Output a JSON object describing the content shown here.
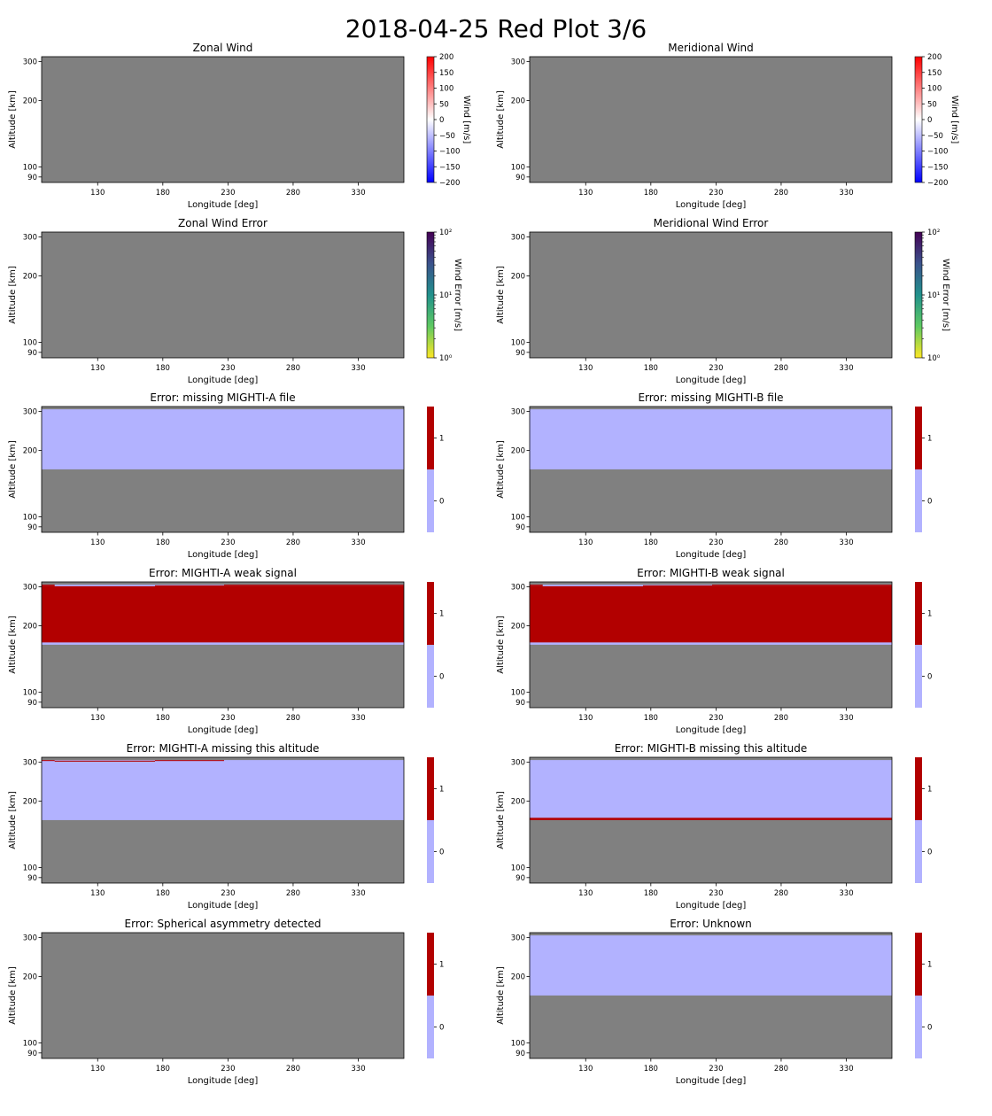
{
  "suptitle": "2018-04-25 Red Plot 3/6",
  "colors": {
    "no_data": "#808080",
    "flag_zero": "#b2b2ff",
    "flag_one": "#b20000",
    "wind_cmap": [
      "#0000ff",
      "#ffffff",
      "#ff0000"
    ],
    "error_cmap": [
      "#fde725",
      "#5ec962",
      "#21918c",
      "#3b528b",
      "#440154"
    ]
  },
  "chart_data": [
    {
      "type": "heatmap",
      "title": "Zonal Wind",
      "xlabel": "Longitude [deg]",
      "ylabel": "Altitude [km]",
      "xticks": [
        130,
        180,
        230,
        280,
        330
      ],
      "yticks": [
        90,
        100,
        200,
        300
      ],
      "xlim": [
        87,
        365
      ],
      "ylim": [
        85,
        316
      ],
      "colorbar": {
        "kind": "wind",
        "label": "Wind [m/s]",
        "range": [
          -200,
          200
        ],
        "ticks": [
          "200",
          "150",
          "100",
          "50",
          "0",
          "−50",
          "−100",
          "−150",
          "−200"
        ]
      },
      "bands": []
    },
    {
      "type": "heatmap",
      "title": "Meridional Wind",
      "xlabel": "Longitude [deg]",
      "ylabel": "Altitude [km]",
      "xticks": [
        130,
        180,
        230,
        280,
        330
      ],
      "yticks": [
        90,
        100,
        200,
        300
      ],
      "xlim": [
        87,
        365
      ],
      "ylim": [
        85,
        316
      ],
      "colorbar": {
        "kind": "wind",
        "label": "Wind [m/s]",
        "range": [
          -200,
          200
        ],
        "ticks": [
          "200",
          "150",
          "100",
          "50",
          "0",
          "−50",
          "−100",
          "−150",
          "−200"
        ]
      },
      "bands": []
    },
    {
      "type": "heatmap",
      "title": "Zonal Wind Error",
      "xlabel": "Longitude [deg]",
      "ylabel": "Altitude [km]",
      "xticks": [
        130,
        180,
        230,
        280,
        330
      ],
      "yticks": [
        90,
        100,
        200,
        300
      ],
      "xlim": [
        87,
        365
      ],
      "ylim": [
        85,
        316
      ],
      "colorbar": {
        "kind": "error",
        "label": "Wind Error [m/s]",
        "scale": "log",
        "range": [
          1,
          100
        ],
        "ticks": [
          "10²",
          "10¹",
          "10⁰"
        ]
      },
      "bands": []
    },
    {
      "type": "heatmap",
      "title": "Meridional Wind Error",
      "xlabel": "Longitude [deg]",
      "ylabel": "Altitude [km]",
      "xticks": [
        130,
        180,
        230,
        280,
        330
      ],
      "yticks": [
        90,
        100,
        200,
        300
      ],
      "xlim": [
        87,
        365
      ],
      "ylim": [
        85,
        316
      ],
      "colorbar": {
        "kind": "error",
        "label": "Wind Error [m/s]",
        "scale": "log",
        "range": [
          1,
          100
        ],
        "ticks": [
          "10²",
          "10¹",
          "10⁰"
        ]
      },
      "bands": []
    },
    {
      "type": "heatmap",
      "title": "Error: missing MIGHTI-A file",
      "xlabel": "Longitude [deg]",
      "ylabel": "Altitude [km]",
      "xticks": [
        130,
        180,
        230,
        280,
        330
      ],
      "yticks": [
        90,
        100,
        200,
        300
      ],
      "xlim": [
        87,
        365
      ],
      "ylim": [
        85,
        316
      ],
      "colorbar": {
        "kind": "flag",
        "label": "",
        "ticks": [
          "1",
          "0"
        ]
      },
      "bands": [
        {
          "x0": 87,
          "x1": 365,
          "y0": 164,
          "y1": 307,
          "value": 0
        }
      ]
    },
    {
      "type": "heatmap",
      "title": "Error: missing MIGHTI-B file",
      "xlabel": "Longitude [deg]",
      "ylabel": "Altitude [km]",
      "xticks": [
        130,
        180,
        230,
        280,
        330
      ],
      "yticks": [
        90,
        100,
        200,
        300
      ],
      "xlim": [
        87,
        365
      ],
      "ylim": [
        85,
        316
      ],
      "colorbar": {
        "kind": "flag",
        "label": "",
        "ticks": [
          "1",
          "0"
        ]
      },
      "bands": [
        {
          "x0": 87,
          "x1": 365,
          "y0": 164,
          "y1": 307,
          "value": 0
        }
      ]
    },
    {
      "type": "heatmap",
      "title": "Error: MIGHTI-A weak signal",
      "xlabel": "Longitude [deg]",
      "ylabel": "Altitude [km]",
      "xticks": [
        130,
        180,
        230,
        280,
        330
      ],
      "yticks": [
        90,
        100,
        200,
        300
      ],
      "xlim": [
        87,
        365
      ],
      "ylim": [
        85,
        316
      ],
      "colorbar": {
        "kind": "flag",
        "label": "",
        "ticks": [
          "1",
          "0"
        ]
      },
      "bands": [
        {
          "x0": 87,
          "x1": 365,
          "y0": 164,
          "y1": 307,
          "value": 0
        },
        {
          "x0": 87,
          "x1": 365,
          "y0": 168,
          "y1": 302,
          "value": 1
        },
        {
          "x0": 87,
          "x1": 97,
          "y0": 302,
          "y1": 307,
          "value": 1
        },
        {
          "x0": 174,
          "x1": 227,
          "y0": 302,
          "y1": 305,
          "value": 1
        },
        {
          "x0": 227,
          "x1": 365,
          "y0": 302,
          "y1": 307,
          "value": 1
        }
      ]
    },
    {
      "type": "heatmap",
      "title": "Error: MIGHTI-B weak signal",
      "xlabel": "Longitude [deg]",
      "ylabel": "Altitude [km]",
      "xticks": [
        130,
        180,
        230,
        280,
        330
      ],
      "yticks": [
        90,
        100,
        200,
        300
      ],
      "xlim": [
        87,
        365
      ],
      "ylim": [
        85,
        316
      ],
      "colorbar": {
        "kind": "flag",
        "label": "",
        "ticks": [
          "1",
          "0"
        ]
      },
      "bands": [
        {
          "x0": 87,
          "x1": 365,
          "y0": 164,
          "y1": 307,
          "value": 0
        },
        {
          "x0": 87,
          "x1": 365,
          "y0": 168,
          "y1": 302,
          "value": 1
        },
        {
          "x0": 87,
          "x1": 97,
          "y0": 302,
          "y1": 307,
          "value": 1
        },
        {
          "x0": 174,
          "x1": 227,
          "y0": 302,
          "y1": 305,
          "value": 1
        },
        {
          "x0": 227,
          "x1": 365,
          "y0": 302,
          "y1": 307,
          "value": 1
        }
      ]
    },
    {
      "type": "heatmap",
      "title": "Error: MIGHTI-A missing this altitude",
      "xlabel": "Longitude [deg]",
      "ylabel": "Altitude [km]",
      "xticks": [
        130,
        180,
        230,
        280,
        330
      ],
      "yticks": [
        90,
        100,
        200,
        300
      ],
      "xlim": [
        87,
        365
      ],
      "ylim": [
        85,
        316
      ],
      "colorbar": {
        "kind": "flag",
        "label": "",
        "ticks": [
          "1",
          "0"
        ]
      },
      "bands": [
        {
          "x0": 87,
          "x1": 365,
          "y0": 164,
          "y1": 307,
          "value": 0
        },
        {
          "x0": 87,
          "x1": 97,
          "y0": 304,
          "y1": 307,
          "value": 1
        },
        {
          "x0": 97,
          "x1": 174,
          "y0": 302,
          "y1": 305,
          "value": 1
        },
        {
          "x0": 174,
          "x1": 227,
          "y0": 304,
          "y1": 307,
          "value": 1
        }
      ]
    },
    {
      "type": "heatmap",
      "title": "Error: MIGHTI-B missing this altitude",
      "xlabel": "Longitude [deg]",
      "ylabel": "Altitude [km]",
      "xticks": [
        130,
        180,
        230,
        280,
        330
      ],
      "yticks": [
        90,
        100,
        200,
        300
      ],
      "xlim": [
        87,
        365
      ],
      "ylim": [
        85,
        316
      ],
      "colorbar": {
        "kind": "flag",
        "label": "",
        "ticks": [
          "1",
          "0"
        ]
      },
      "bands": [
        {
          "x0": 87,
          "x1": 365,
          "y0": 164,
          "y1": 307,
          "value": 0
        },
        {
          "x0": 87,
          "x1": 365,
          "y0": 164,
          "y1": 168,
          "value": 1
        }
      ]
    },
    {
      "type": "heatmap",
      "title": "Error: Spherical asymmetry detected",
      "xlabel": "Longitude [deg]",
      "ylabel": "Altitude [km]",
      "xticks": [
        130,
        180,
        230,
        280,
        330
      ],
      "yticks": [
        90,
        100,
        200,
        300
      ],
      "xlim": [
        87,
        365
      ],
      "ylim": [
        85,
        316
      ],
      "colorbar": {
        "kind": "flag",
        "label": "",
        "ticks": [
          "1",
          "0"
        ]
      },
      "bands": []
    },
    {
      "type": "heatmap",
      "title": "Error: Unknown",
      "xlabel": "Longitude [deg]",
      "ylabel": "Altitude [km]",
      "xticks": [
        130,
        180,
        230,
        280,
        330
      ],
      "yticks": [
        90,
        100,
        200,
        300
      ],
      "xlim": [
        87,
        365
      ],
      "ylim": [
        85,
        316
      ],
      "colorbar": {
        "kind": "flag",
        "label": "",
        "ticks": [
          "1",
          "0"
        ]
      },
      "bands": [
        {
          "x0": 87,
          "x1": 365,
          "y0": 164,
          "y1": 307,
          "value": 0
        }
      ]
    }
  ]
}
